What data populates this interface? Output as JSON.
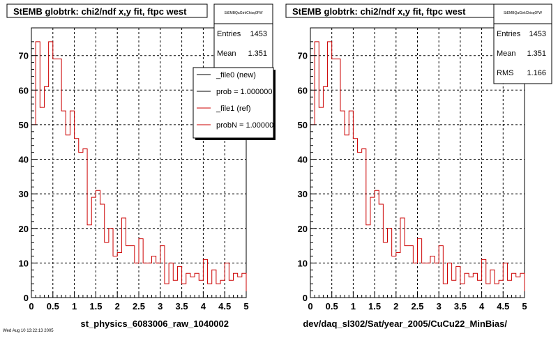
{
  "footer_text": "Wed Aug 10 13:22:13 2005",
  "colors": {
    "new": "#000000",
    "ref": "#cc0000"
  },
  "legend": {
    "entries": [
      "_file0 (new)",
      "prob = 1.000000",
      "_file1 (ref)",
      "probN = 1.000000"
    ]
  },
  "chart_data": [
    {
      "type": "histogram",
      "title": "StEMB globtrk: chi2/ndf x,y fit, ftpc west",
      "xlabel": "st_physics_6083006_raw_1040002",
      "xlim": [
        0,
        5
      ],
      "ylim": [
        0,
        78
      ],
      "xticks": [
        "0",
        "0.5",
        "1",
        "1.5",
        "2",
        "2.5",
        "3",
        "3.5",
        "4",
        "4.5",
        "5"
      ],
      "yticks": [
        "0",
        "10",
        "20",
        "30",
        "40",
        "50",
        "60",
        "70"
      ],
      "grid": true,
      "stats": {
        "title": "StEMBQaGtrkChisq0FW",
        "rows": [
          {
            "label": "Entries",
            "value": "1453"
          },
          {
            "label": "Mean",
            "value": "1.351"
          }
        ]
      },
      "bin_width": 0.1,
      "series": [
        {
          "values": [
            50,
            74,
            55,
            61,
            74,
            69,
            69,
            54,
            47,
            54,
            46,
            42,
            43,
            21,
            29,
            31,
            27,
            16,
            20,
            12,
            13,
            23,
            15,
            15,
            10,
            17,
            10,
            10,
            12,
            10,
            15,
            4,
            10,
            5,
            9,
            4,
            7,
            6,
            7,
            5,
            11,
            4,
            8,
            4,
            5,
            10,
            5,
            7,
            6,
            7
          ]
        }
      ]
    },
    {
      "type": "histogram",
      "title": "StEMB globtrk: chi2/ndf x,y fit, ftpc west",
      "xlabel": "dev/daq_sl302/Sat/year_2005/CuCu22_MinBias/",
      "xlim": [
        0,
        5
      ],
      "ylim": [
        0,
        78
      ],
      "xticks": [
        "0",
        "0.5",
        "1",
        "1.5",
        "2",
        "2.5",
        "3",
        "3.5",
        "4",
        "4.5",
        "5"
      ],
      "yticks": [
        "0",
        "10",
        "20",
        "30",
        "40",
        "50",
        "60",
        "70"
      ],
      "grid": true,
      "stats": {
        "title": "StEMBQaGtrkChisq0FW",
        "rows": [
          {
            "label": "Entries",
            "value": "1453"
          },
          {
            "label": "Mean",
            "value": "1.351"
          },
          {
            "label": "RMS",
            "value": "1.166"
          }
        ]
      },
      "bin_width": 0.1,
      "series": [
        {
          "values": [
            50,
            74,
            55,
            61,
            74,
            69,
            69,
            54,
            47,
            54,
            46,
            42,
            43,
            21,
            29,
            31,
            27,
            16,
            20,
            12,
            13,
            23,
            15,
            15,
            10,
            17,
            10,
            10,
            12,
            10,
            15,
            4,
            10,
            5,
            9,
            4,
            7,
            6,
            7,
            5,
            11,
            4,
            8,
            4,
            5,
            10,
            5,
            7,
            6,
            7
          ]
        }
      ]
    }
  ]
}
